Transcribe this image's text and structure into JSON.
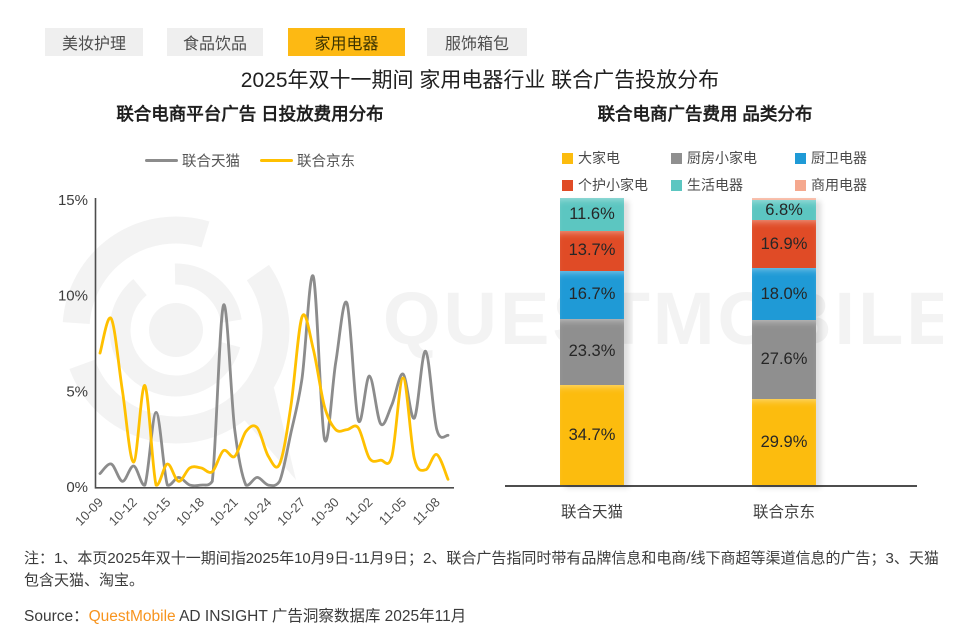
{
  "tabs": [
    {
      "label": "美妆护理",
      "active": false
    },
    {
      "label": "食品饮品",
      "active": false
    },
    {
      "label": "家用电器",
      "active": true
    },
    {
      "label": "服饰箱包",
      "active": false
    }
  ],
  "active_tab": 2,
  "title": "2025年双十一期间 家用电器行业 联合广告投放分布",
  "watermark": "QUESTMOBILE",
  "colors": {
    "tab_active": "#fdb913",
    "line_tmall": "#8c8c8c",
    "line_jd": "#ffc000",
    "axis": "#4d4d4d",
    "brand_orange": "#f7941e"
  },
  "note_text": "注：1、本页2025年双十一期间指2025年10月9日-11月9日；2、联合广告指同时带有品牌信息和电商/线下商超等渠道信息的广告；3、天猫包含天猫、淘宝。",
  "source": {
    "prefix": "Source：",
    "brand": "QuestMobile",
    "suffix": " AD INSIGHT 广告洞察数据库 2025年11月"
  },
  "chart_data": [
    {
      "type": "line",
      "title": "联合电商平台广告 日投放费用分布",
      "x": [
        "10-09",
        "10-10",
        "10-11",
        "10-12",
        "10-13",
        "10-14",
        "10-15",
        "10-16",
        "10-17",
        "10-18",
        "10-19",
        "10-20",
        "10-21",
        "10-22",
        "10-23",
        "10-24",
        "10-25",
        "10-26",
        "10-27",
        "10-28",
        "10-29",
        "10-30",
        "10-31",
        "11-01",
        "11-02",
        "11-03",
        "11-04",
        "11-05",
        "11-06",
        "11-07",
        "11-08",
        "11-09"
      ],
      "x_tick_labels": [
        "10-09",
        "10-12",
        "10-15",
        "10-18",
        "10-21",
        "10-24",
        "10-27",
        "10-30",
        "11-02",
        "11-05",
        "11-08"
      ],
      "ylim": [
        0,
        15
      ],
      "yticks": [
        "0%",
        "5%",
        "10%",
        "15%"
      ],
      "grid": false,
      "legend_position": "top",
      "series": [
        {
          "name": "联合天猫",
          "color": "#8c8c8c",
          "values": [
            0.7,
            1.2,
            0.3,
            1.1,
            0.1,
            3.9,
            0.1,
            0.5,
            0.1,
            0.1,
            0.3,
            9.5,
            3.0,
            0.1,
            0.5,
            0.1,
            0.3,
            2.8,
            5.7,
            11.0,
            2.5,
            6.5,
            9.6,
            3.5,
            5.8,
            3.3,
            4.3,
            5.9,
            3.6,
            7.1,
            3.0,
            2.7
          ]
        },
        {
          "name": "联合京东",
          "color": "#ffc000",
          "values": [
            7.0,
            8.8,
            5.0,
            1.3,
            5.3,
            0.1,
            1.2,
            0.3,
            1.0,
            1.0,
            0.8,
            1.9,
            1.6,
            2.9,
            3.1,
            1.6,
            1.2,
            4.2,
            8.9,
            7.2,
            4.2,
            3.0,
            3.0,
            3.1,
            1.5,
            1.4,
            1.6,
            5.7,
            1.5,
            0.9,
            1.7,
            0.4
          ]
        }
      ]
    },
    {
      "type": "bar",
      "stacked": true,
      "title": "联合电商广告费用 品类分布",
      "categories": [
        "联合天猫",
        "联合京东"
      ],
      "unit": "%",
      "series": [
        {
          "name": "大家电",
          "color": "#fcbc0e",
          "values": [
            34.7,
            29.9
          ]
        },
        {
          "name": "厨房小家电",
          "color": "#8f8f8f",
          "values": [
            23.3,
            27.6
          ]
        },
        {
          "name": "厨卫电器",
          "color": "#1f9ad6",
          "values": [
            16.7,
            18.0
          ]
        },
        {
          "name": "个护小家电",
          "color": "#e04b26",
          "values": [
            13.7,
            16.9
          ]
        },
        {
          "name": "生活电器",
          "color": "#5cc6c1",
          "values": [
            11.6,
            6.8
          ]
        },
        {
          "name": "商用电器",
          "color": "#f5a88e",
          "values": [
            0.0,
            0.8
          ]
        }
      ]
    }
  ]
}
